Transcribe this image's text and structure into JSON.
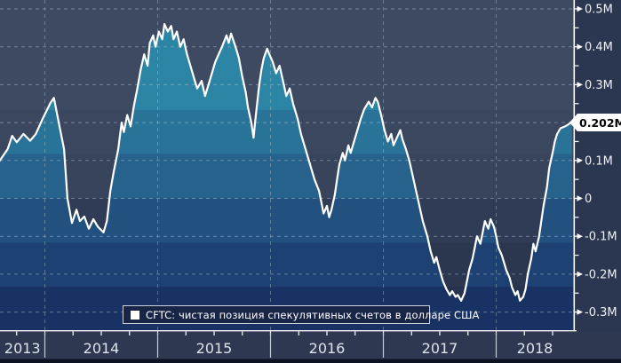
{
  "chart_data": {
    "type": "area",
    "title": "",
    "legend": [
      {
        "label": "CFTC: чистая позиция спекулятивных счетов в долларе США",
        "marker_color": "#ffffff"
      }
    ],
    "legend_position": "bottom",
    "grid": "dashed",
    "last_value": {
      "label": "0.202M",
      "value": 0.202
    },
    "x_axis": {
      "tick_labels": [
        "2013",
        "2014",
        "2015",
        "2016",
        "2017",
        "2018"
      ],
      "tick_years": [
        2013,
        2014,
        2015,
        2016,
        2017,
        2018
      ],
      "range_decimal_years": [
        2013.6,
        2018.68
      ]
    },
    "y_axis": {
      "unit": "M",
      "tick_labels": [
        "0.5M",
        "0.4M",
        "0.3M",
        "0.2M",
        "0.1M",
        "0",
        "-0.1M",
        "-0.2M",
        "-0.3M"
      ],
      "tick_values": [
        0.5,
        0.4,
        0.3,
        0.2,
        0.1,
        0,
        -0.1,
        -0.2,
        -0.3
      ],
      "minor_tick_values": [
        0.45,
        0.35,
        0.25,
        0.15,
        0.05,
        -0.05,
        -0.15,
        -0.25
      ],
      "ylim": [
        -0.348,
        0.523
      ]
    },
    "colors": {
      "line": "#ffffff",
      "axis": "#ffffff",
      "grid": "#a9bac9",
      "tick_label": "#eef1f5",
      "x_label": "#dde3ec",
      "fill_band_boundaries_values": [
        0.233,
        0.117,
        0,
        -0.117,
        -0.233
      ],
      "fill_bands": [
        "#2d85a6",
        "#2a7398",
        "#27628c",
        "#225180",
        "#1d4173",
        "#183264"
      ],
      "bg_bands": [
        "#3e4a61",
        "#3b475e",
        "#38445b",
        "#303c55",
        "#2b374f",
        "#27334e"
      ],
      "right_margin_bg": "#2b3650",
      "axis_strip_bg": "#2e3951",
      "bottom_strip": "#0b1322",
      "year_separator": "#c3cbd7",
      "legend_bg": "#182546",
      "legend_border": "#ccd2db",
      "callout_bg": "#ffffff",
      "callout_text": "#000000"
    },
    "series": [
      {
        "name": "CFTC: чистая позиция спекулятивных счетов в долларе США",
        "points": [
          [
            2013.59,
            0.095
          ],
          [
            2013.67,
            0.13
          ],
          [
            2013.71,
            0.165
          ],
          [
            2013.75,
            0.148
          ],
          [
            2013.81,
            0.17
          ],
          [
            2013.87,
            0.152
          ],
          [
            2013.92,
            0.17
          ],
          [
            2013.98,
            0.21
          ],
          [
            2014.05,
            0.252
          ],
          [
            2014.08,
            0.265
          ],
          [
            2014.13,
            0.19
          ],
          [
            2014.17,
            0.13
          ],
          [
            2014.2,
            0.0
          ],
          [
            2014.24,
            -0.065
          ],
          [
            2014.28,
            -0.03
          ],
          [
            2014.31,
            -0.06
          ],
          [
            2014.35,
            -0.048
          ],
          [
            2014.39,
            -0.08
          ],
          [
            2014.43,
            -0.055
          ],
          [
            2014.47,
            -0.075
          ],
          [
            2014.52,
            -0.09
          ],
          [
            2014.55,
            -0.06
          ],
          [
            2014.58,
            0.02
          ],
          [
            2014.61,
            0.07
          ],
          [
            2014.65,
            0.13
          ],
          [
            2014.68,
            0.2
          ],
          [
            2014.7,
            0.175
          ],
          [
            2014.73,
            0.22
          ],
          [
            2014.76,
            0.19
          ],
          [
            2014.79,
            0.245
          ],
          [
            2014.82,
            0.29
          ],
          [
            2014.85,
            0.34
          ],
          [
            2014.88,
            0.38
          ],
          [
            2014.91,
            0.35
          ],
          [
            2014.93,
            0.41
          ],
          [
            2014.96,
            0.43
          ],
          [
            2014.98,
            0.4
          ],
          [
            2015.01,
            0.44
          ],
          [
            2015.04,
            0.42
          ],
          [
            2015.06,
            0.46
          ],
          [
            2015.09,
            0.44
          ],
          [
            2015.12,
            0.455
          ],
          [
            2015.14,
            0.42
          ],
          [
            2015.17,
            0.44
          ],
          [
            2015.2,
            0.4
          ],
          [
            2015.23,
            0.42
          ],
          [
            2015.26,
            0.38
          ],
          [
            2015.29,
            0.35
          ],
          [
            2015.32,
            0.32
          ],
          [
            2015.35,
            0.29
          ],
          [
            2015.39,
            0.31
          ],
          [
            2015.42,
            0.27
          ],
          [
            2015.45,
            0.3
          ],
          [
            2015.48,
            0.33
          ],
          [
            2015.51,
            0.36
          ],
          [
            2015.54,
            0.38
          ],
          [
            2015.57,
            0.4
          ],
          [
            2015.61,
            0.43
          ],
          [
            2015.63,
            0.41
          ],
          [
            2015.65,
            0.435
          ],
          [
            2015.69,
            0.4
          ],
          [
            2015.72,
            0.37
          ],
          [
            2015.75,
            0.32
          ],
          [
            2015.78,
            0.28
          ],
          [
            2015.8,
            0.24
          ],
          [
            2015.83,
            0.2
          ],
          [
            2015.85,
            0.16
          ],
          [
            2015.87,
            0.22
          ],
          [
            2015.9,
            0.3
          ],
          [
            2015.92,
            0.34
          ],
          [
            2015.94,
            0.37
          ],
          [
            2015.97,
            0.395
          ],
          [
            2015.99,
            0.38
          ],
          [
            2016.02,
            0.36
          ],
          [
            2016.05,
            0.33
          ],
          [
            2016.08,
            0.35
          ],
          [
            2016.11,
            0.31
          ],
          [
            2016.14,
            0.27
          ],
          [
            2016.17,
            0.29
          ],
          [
            2016.2,
            0.25
          ],
          [
            2016.24,
            0.21
          ],
          [
            2016.27,
            0.17
          ],
          [
            2016.3,
            0.14
          ],
          [
            2016.33,
            0.11
          ],
          [
            2016.36,
            0.08
          ],
          [
            2016.39,
            0.05
          ],
          [
            2016.43,
            0.02
          ],
          [
            2016.45,
            -0.01
          ],
          [
            2016.47,
            -0.04
          ],
          [
            2016.5,
            -0.02
          ],
          [
            2016.52,
            -0.05
          ],
          [
            2016.54,
            -0.03
          ],
          [
            2016.57,
            0.01
          ],
          [
            2016.59,
            0.05
          ],
          [
            2016.61,
            0.09
          ],
          [
            2016.64,
            0.12
          ],
          [
            2016.66,
            0.1
          ],
          [
            2016.69,
            0.14
          ],
          [
            2016.71,
            0.12
          ],
          [
            2016.74,
            0.15
          ],
          [
            2016.77,
            0.18
          ],
          [
            2016.8,
            0.21
          ],
          [
            2016.83,
            0.235
          ],
          [
            2016.87,
            0.255
          ],
          [
            2016.9,
            0.24
          ],
          [
            2016.93,
            0.265
          ],
          [
            2016.95,
            0.255
          ],
          [
            2016.98,
            0.22
          ],
          [
            2017.01,
            0.18
          ],
          [
            2017.04,
            0.15
          ],
          [
            2017.07,
            0.17
          ],
          [
            2017.09,
            0.14
          ],
          [
            2017.12,
            0.16
          ],
          [
            2017.15,
            0.18
          ],
          [
            2017.17,
            0.155
          ],
          [
            2017.2,
            0.13
          ],
          [
            2017.23,
            0.1
          ],
          [
            2017.26,
            0.06
          ],
          [
            2017.29,
            0.02
          ],
          [
            2017.32,
            -0.02
          ],
          [
            2017.35,
            -0.06
          ],
          [
            2017.39,
            -0.1
          ],
          [
            2017.42,
            -0.14
          ],
          [
            2017.45,
            -0.17
          ],
          [
            2017.47,
            -0.155
          ],
          [
            2017.5,
            -0.19
          ],
          [
            2017.53,
            -0.22
          ],
          [
            2017.56,
            -0.24
          ],
          [
            2017.59,
            -0.255
          ],
          [
            2017.61,
            -0.245
          ],
          [
            2017.64,
            -0.26
          ],
          [
            2017.66,
            -0.255
          ],
          [
            2017.69,
            -0.27
          ],
          [
            2017.72,
            -0.25
          ],
          [
            2017.74,
            -0.22
          ],
          [
            2017.76,
            -0.19
          ],
          [
            2017.79,
            -0.16
          ],
          [
            2017.81,
            -0.13
          ],
          [
            2017.83,
            -0.1
          ],
          [
            2017.86,
            -0.12
          ],
          [
            2017.88,
            -0.09
          ],
          [
            2017.9,
            -0.06
          ],
          [
            2017.93,
            -0.08
          ],
          [
            2017.95,
            -0.055
          ],
          [
            2017.98,
            -0.075
          ],
          [
            2018.0,
            -0.1
          ],
          [
            2018.02,
            -0.13
          ],
          [
            2018.05,
            -0.15
          ],
          [
            2018.07,
            -0.17
          ],
          [
            2018.09,
            -0.19
          ],
          [
            2018.12,
            -0.21
          ],
          [
            2018.14,
            -0.235
          ],
          [
            2018.17,
            -0.255
          ],
          [
            2018.19,
            -0.245
          ],
          [
            2018.21,
            -0.27
          ],
          [
            2018.24,
            -0.26
          ],
          [
            2018.26,
            -0.24
          ],
          [
            2018.28,
            -0.2
          ],
          [
            2018.31,
            -0.16
          ],
          [
            2018.33,
            -0.12
          ],
          [
            2018.35,
            -0.14
          ],
          [
            2018.38,
            -0.1
          ],
          [
            2018.4,
            -0.06
          ],
          [
            2018.42,
            -0.02
          ],
          [
            2018.45,
            0.03
          ],
          [
            2018.47,
            0.08
          ],
          [
            2018.5,
            0.12
          ],
          [
            2018.52,
            0.15
          ],
          [
            2018.54,
            0.17
          ],
          [
            2018.57,
            0.185
          ],
          [
            2018.61,
            0.19
          ],
          [
            2018.64,
            0.195
          ],
          [
            2018.67,
            0.202
          ]
        ]
      }
    ]
  }
}
